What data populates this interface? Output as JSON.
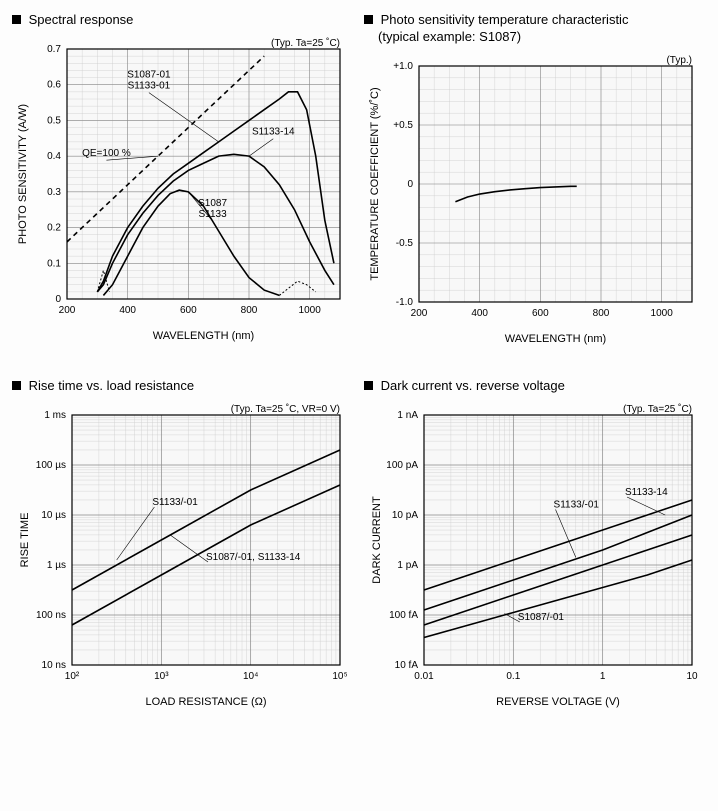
{
  "colors": {
    "bg": "#fdfdfd",
    "plot_bg": "#f8f8f8",
    "axis": "#000000",
    "grid_major": "#888888",
    "grid_minor": "#cccccc",
    "series": "#000000",
    "text": "#000000"
  },
  "line_width_major": 1.6,
  "line_width_minor": 0.5,
  "chart1": {
    "title": "Spectral response",
    "note": "(Typ. Ta=25 ˚C)",
    "xlabel": "WAVELENGTH (nm)",
    "ylabel": "PHOTO SENSITIVITY (A/W)",
    "xlim": [
      200,
      1100
    ],
    "ylim": [
      0,
      0.7
    ],
    "xticks": [
      200,
      400,
      600,
      800,
      1000
    ],
    "yticks": [
      0,
      0.1,
      0.2,
      0.3,
      0.4,
      0.5,
      0.6,
      0.7
    ],
    "xminor_step": 50,
    "yminor_step": 0.02,
    "series": [
      {
        "label": "S1087-01\nS1133-01",
        "label_xy": [
          470,
          0.62
        ],
        "pointer_to": [
          700,
          0.44
        ],
        "dash": false,
        "points": [
          [
            300,
            0.02
          ],
          [
            320,
            0.05
          ],
          [
            350,
            0.12
          ],
          [
            400,
            0.2
          ],
          [
            450,
            0.26
          ],
          [
            500,
            0.31
          ],
          [
            550,
            0.35
          ],
          [
            600,
            0.38
          ],
          [
            650,
            0.41
          ],
          [
            700,
            0.44
          ],
          [
            750,
            0.47
          ],
          [
            800,
            0.5
          ],
          [
            850,
            0.53
          ],
          [
            900,
            0.56
          ],
          [
            930,
            0.58
          ],
          [
            960,
            0.58
          ],
          [
            990,
            0.53
          ],
          [
            1020,
            0.4
          ],
          [
            1050,
            0.22
          ],
          [
            1080,
            0.1
          ]
        ]
      },
      {
        "label": "S1133-14",
        "label_xy": [
          880,
          0.46
        ],
        "pointer_to": [
          800,
          0.4
        ],
        "dash": false,
        "points": [
          [
            300,
            0.02
          ],
          [
            320,
            0.04
          ],
          [
            350,
            0.1
          ],
          [
            400,
            0.18
          ],
          [
            450,
            0.24
          ],
          [
            500,
            0.29
          ],
          [
            550,
            0.33
          ],
          [
            600,
            0.36
          ],
          [
            650,
            0.38
          ],
          [
            700,
            0.4
          ],
          [
            750,
            0.405
          ],
          [
            800,
            0.4
          ],
          [
            850,
            0.37
          ],
          [
            900,
            0.32
          ],
          [
            950,
            0.25
          ],
          [
            1000,
            0.16
          ],
          [
            1050,
            0.08
          ],
          [
            1080,
            0.04
          ]
        ]
      },
      {
        "label": "S1087\nS1133",
        "label_xy": [
          680,
          0.26
        ],
        "pointer_to": [
          600,
          0.3
        ],
        "dash": false,
        "points": [
          [
            320,
            0.01
          ],
          [
            350,
            0.04
          ],
          [
            400,
            0.12
          ],
          [
            450,
            0.2
          ],
          [
            500,
            0.26
          ],
          [
            540,
            0.295
          ],
          [
            570,
            0.305
          ],
          [
            600,
            0.3
          ],
          [
            650,
            0.26
          ],
          [
            700,
            0.19
          ],
          [
            750,
            0.12
          ],
          [
            800,
            0.06
          ],
          [
            850,
            0.025
          ],
          [
            900,
            0.01
          ]
        ]
      },
      {
        "label": "QE=100 %",
        "label_xy": [
          330,
          0.4
        ],
        "pointer_to": [
          500,
          0.4
        ],
        "dash": true,
        "points": [
          [
            200,
            0.16
          ],
          [
            300,
            0.24
          ],
          [
            400,
            0.32
          ],
          [
            500,
            0.4
          ],
          [
            600,
            0.48
          ],
          [
            700,
            0.56
          ],
          [
            800,
            0.64
          ],
          [
            850,
            0.68
          ]
        ]
      }
    ],
    "dashed_tails": [
      [
        [
          300,
          0.02
        ],
        [
          310,
          0.05
        ],
        [
          320,
          0.08
        ],
        [
          330,
          0.05
        ],
        [
          340,
          0.02
        ]
      ],
      [
        [
          900,
          0.01
        ],
        [
          930,
          0.03
        ],
        [
          960,
          0.05
        ],
        [
          990,
          0.04
        ],
        [
          1020,
          0.02
        ]
      ]
    ]
  },
  "chart2": {
    "title_line1": "Photo sensitivity temperature characteristic",
    "title_line2": "(typical example: S1087)",
    "note": "(Typ.)",
    "xlabel": "WAVELENGTH (nm)",
    "ylabel": "TEMPERATURE COEFFICIENT (%/˚C)",
    "xlim": [
      200,
      1100
    ],
    "ylim": [
      -1.0,
      1.0
    ],
    "xticks": [
      200,
      400,
      600,
      800,
      1000
    ],
    "yticks": [
      -1.0,
      -0.5,
      0,
      0.5,
      1.0
    ],
    "ytick_labels": [
      "-1.0",
      "-0.5",
      "0",
      "+0.5",
      "+1.0"
    ],
    "xminor_step": 50,
    "yminor_step": 0.1,
    "series": [
      {
        "dash": false,
        "points": [
          [
            320,
            -0.15
          ],
          [
            360,
            -0.11
          ],
          [
            400,
            -0.085
          ],
          [
            450,
            -0.065
          ],
          [
            500,
            -0.05
          ],
          [
            550,
            -0.04
          ],
          [
            600,
            -0.03
          ],
          [
            650,
            -0.025
          ],
          [
            700,
            -0.02
          ],
          [
            720,
            -0.02
          ]
        ]
      }
    ]
  },
  "chart3": {
    "title": "Rise time vs. load resistance",
    "note": "(Typ. Ta=25 ˚C, VR=0 V)",
    "xlabel": "LOAD RESISTANCE (Ω)",
    "ylabel": "RISE TIME",
    "xlim_log": [
      2,
      5
    ],
    "ylim_log": [
      -8,
      -3
    ],
    "xticks_log": [
      2,
      3,
      4,
      5
    ],
    "xtick_labels": [
      "10²",
      "10³",
      "10⁴",
      "10⁵"
    ],
    "yticks_log": [
      -8,
      -7,
      -6,
      -5,
      -4,
      -3
    ],
    "ytick_labels": [
      "10 ns",
      "100 ns",
      "1 µs",
      "10 µs",
      "100 µs",
      "1 ms"
    ],
    "series": [
      {
        "label": "S1133/-01",
        "label_xy_log": [
          2.9,
          -4.8
        ],
        "pointer_to_log": [
          2.5,
          -5.9
        ],
        "points_log": [
          [
            2,
            -6.5
          ],
          [
            3,
            -5.5
          ],
          [
            4,
            -4.5
          ],
          [
            5,
            -3.7
          ]
        ]
      },
      {
        "label": "S1087/-01, S1133-14",
        "label_xy_log": [
          3.5,
          -5.9
        ],
        "pointer_to_log": [
          3.1,
          -5.4
        ],
        "points_log": [
          [
            2,
            -7.2
          ],
          [
            3,
            -6.2
          ],
          [
            4,
            -5.2
          ],
          [
            5,
            -4.4
          ]
        ]
      }
    ]
  },
  "chart4": {
    "title": "Dark current vs. reverse voltage",
    "note": "(Typ. Ta=25 ˚C)",
    "xlabel": "REVERSE VOLTAGE (V)",
    "ylabel": "DARK CURRENT",
    "xlim_log": [
      -2,
      1
    ],
    "ylim_log": [
      -14,
      -9
    ],
    "xticks_log": [
      -2,
      -1,
      0,
      1
    ],
    "xtick_labels": [
      "0.01",
      "0.1",
      "1",
      "10"
    ],
    "yticks_log": [
      -14,
      -13,
      -12,
      -11,
      -10,
      -9
    ],
    "ytick_labels": [
      "10 fA",
      "100 fA",
      "1 pA",
      "10 pA",
      "100 pA",
      "1 nA"
    ],
    "series": [
      {
        "label": "S1133-14",
        "label_xy_log": [
          0.25,
          -10.6
        ],
        "pointer_to_log": [
          0.7,
          -11.0
        ],
        "points_log": [
          [
            -2,
            -12.5
          ],
          [
            -1.5,
            -12.2
          ],
          [
            -1,
            -11.9
          ],
          [
            -0.5,
            -11.6
          ],
          [
            0,
            -11.3
          ],
          [
            0.5,
            -11.0
          ],
          [
            1,
            -10.7
          ]
        ]
      },
      {
        "label": "S1133/-01",
        "label_xy_log": [
          -0.55,
          -10.85
        ],
        "pointer_to_log": [
          -0.3,
          -11.85
        ],
        "points_log": [
          [
            -2,
            -12.9
          ],
          [
            -1.5,
            -12.6
          ],
          [
            -1,
            -12.3
          ],
          [
            -0.5,
            -12.0
          ],
          [
            0,
            -11.7
          ],
          [
            0.5,
            -11.35
          ],
          [
            1,
            -11.0
          ]
        ]
      },
      {
        "label": "",
        "points_log": [
          [
            -2,
            -13.2
          ],
          [
            -1.5,
            -12.9
          ],
          [
            -1,
            -12.6
          ],
          [
            -0.5,
            -12.3
          ],
          [
            0,
            -12.0
          ],
          [
            0.5,
            -11.7
          ],
          [
            1,
            -11.4
          ]
        ]
      },
      {
        "label": "S1087/-01",
        "label_xy_log": [
          -0.95,
          -13.1
        ],
        "pointer_to_log": [
          -1.1,
          -12.97
        ],
        "points_log": [
          [
            -2,
            -13.45
          ],
          [
            -1.5,
            -13.2
          ],
          [
            -1,
            -12.95
          ],
          [
            -0.5,
            -12.7
          ],
          [
            0,
            -12.45
          ],
          [
            0.5,
            -12.2
          ],
          [
            1,
            -11.9
          ]
        ]
      }
    ]
  }
}
